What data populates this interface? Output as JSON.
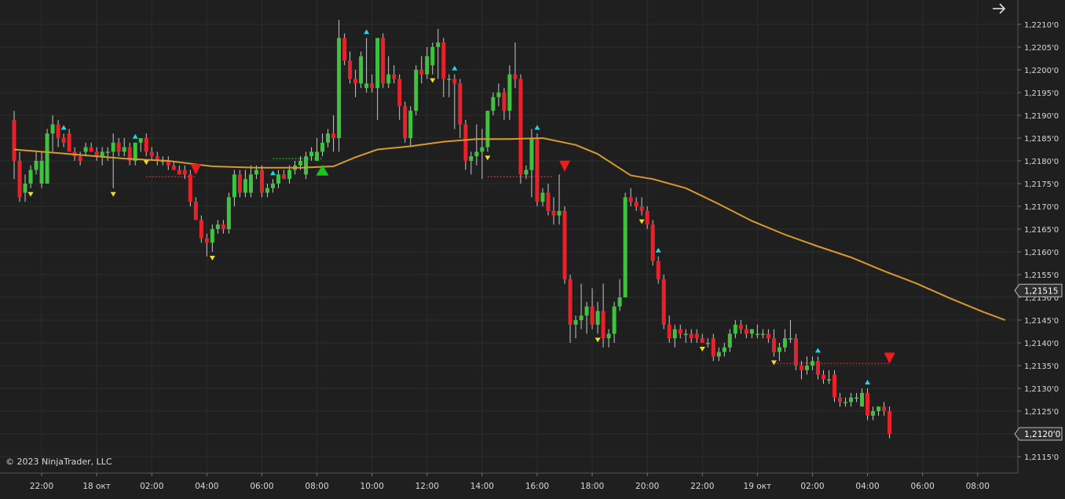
{
  "colors": {
    "background": "#1f1f1f",
    "grid": "#2d2d2d",
    "up_candle": "#3fc33f",
    "down_candle": "#e8222a",
    "wick": "#c8c8c8",
    "moving_average": "#d69a2d",
    "swing_high_marker": "#1fd6e6",
    "swing_low_marker": "#f2dc1e",
    "buy_signal": "#18c418",
    "sell_signal": "#f01c1c",
    "axis_text": "#d8d8d8",
    "price_label_bg": "#2e2e2e"
  },
  "icons": {
    "top_right": "arrow-right-icon"
  },
  "copyright": "© 2023 NinjaTrader, LLC",
  "chart_data": {
    "type": "candlestick",
    "title": "",
    "grid": true,
    "price_axis_side": "right",
    "ylim": [
      1.21125,
      1.2214
    ],
    "y_ticks": [
      {
        "value": 1.221,
        "label": "1,2210'0"
      },
      {
        "value": 1.2205,
        "label": "1,2205'0"
      },
      {
        "value": 1.22,
        "label": "1,2200'0"
      },
      {
        "value": 1.2195,
        "label": "1,2195'0"
      },
      {
        "value": 1.219,
        "label": "1,2190'0"
      },
      {
        "value": 1.2185,
        "label": "1,2185'0"
      },
      {
        "value": 1.218,
        "label": "1,2180'0"
      },
      {
        "value": 1.2175,
        "label": "1,2175'0"
      },
      {
        "value": 1.217,
        "label": "1,2170'0"
      },
      {
        "value": 1.2165,
        "label": "1,2165'0"
      },
      {
        "value": 1.216,
        "label": "1,2160'0"
      },
      {
        "value": 1.2155,
        "label": "1,2155'0"
      },
      {
        "value": 1.215,
        "label": "1,2150'0"
      },
      {
        "value": 1.2145,
        "label": "1,2145'0"
      },
      {
        "value": 1.214,
        "label": "1,2140'0"
      },
      {
        "value": 1.2135,
        "label": "1,2135'0"
      },
      {
        "value": 1.213,
        "label": "1,2130'0"
      },
      {
        "value": 1.2125,
        "label": "1,2125'0"
      },
      {
        "value": 1.212,
        "label": "1,2120'0"
      },
      {
        "value": 1.2115,
        "label": "1,2115'0"
      }
    ],
    "price_labels": [
      {
        "value": 1.21515,
        "label": "1,21515"
      },
      {
        "value": 1.212,
        "label": "1,2120'0"
      }
    ],
    "x_ticks": [
      {
        "bar": 5,
        "label": "22:00"
      },
      {
        "bar": 15,
        "label": "18 окт"
      },
      {
        "bar": 25,
        "label": "02:00"
      },
      {
        "bar": 35,
        "label": "04:00"
      },
      {
        "bar": 45,
        "label": "06:00"
      },
      {
        "bar": 55,
        "label": "08:00"
      },
      {
        "bar": 65,
        "label": "10:00"
      },
      {
        "bar": 75,
        "label": "12:00"
      },
      {
        "bar": 85,
        "label": "14:00"
      },
      {
        "bar": 95,
        "label": "16:00"
      },
      {
        "bar": 105,
        "label": "18:00"
      },
      {
        "bar": 115,
        "label": "20:00"
      },
      {
        "bar": 125,
        "label": "22:00"
      },
      {
        "bar": 135,
        "label": "19 окт"
      },
      {
        "bar": 145,
        "label": "02:00"
      },
      {
        "bar": 155,
        "label": "04:00"
      },
      {
        "bar": 165,
        "label": "06:00"
      },
      {
        "bar": 175,
        "label": "08:00"
      }
    ],
    "bars": [
      [
        1.2189,
        1.2191,
        1.2176,
        1.218
      ],
      [
        1.218,
        1.2182,
        1.2171,
        1.2172
      ],
      [
        1.2173,
        1.2177,
        1.2171,
        1.2175
      ],
      [
        1.2175,
        1.2179,
        1.2174,
        1.2178
      ],
      [
        1.2178,
        1.2182,
        1.2177,
        1.218
      ],
      [
        1.2175,
        1.2182,
        1.2174,
        1.218
      ],
      [
        1.2175,
        1.2187,
        1.2175,
        1.2186
      ],
      [
        1.2186,
        1.219,
        1.2182,
        1.2188
      ],
      [
        1.2188,
        1.2189,
        1.2183,
        1.2185
      ],
      [
        1.2185,
        1.2186,
        1.2183,
        1.2184
      ],
      [
        1.2186,
        1.2187,
        1.2182,
        1.2182
      ],
      [
        1.2182,
        1.2183,
        1.218,
        1.2181
      ],
      [
        1.2181,
        1.2182,
        1.2179,
        1.218
      ],
      [
        1.2182,
        1.2184,
        1.2181,
        1.2183
      ],
      [
        1.2183,
        1.2184,
        1.2182,
        1.2182
      ],
      [
        1.2182,
        1.2183,
        1.218,
        1.2181
      ],
      [
        1.2181,
        1.2183,
        1.2179,
        1.2182
      ],
      [
        1.2182,
        1.2183,
        1.218,
        1.2182
      ],
      [
        1.2182,
        1.2186,
        1.2174,
        1.2184
      ],
      [
        1.2184,
        1.2185,
        1.2181,
        1.2182
      ],
      [
        1.2182,
        1.2185,
        1.2181,
        1.2183
      ],
      [
        1.2183,
        1.2184,
        1.2179,
        1.218
      ],
      [
        1.218,
        1.2184,
        1.2179,
        1.2184
      ],
      [
        1.2184,
        1.2185,
        1.2182,
        1.2185
      ],
      [
        1.2185,
        1.2186,
        1.2181,
        1.2182
      ],
      [
        1.2182,
        1.2183,
        1.218,
        1.2181
      ],
      [
        1.2181,
        1.2182,
        1.2179,
        1.218
      ],
      [
        1.218,
        1.2181,
        1.2179,
        1.218
      ],
      [
        1.218,
        1.2181,
        1.2178,
        1.2179
      ],
      [
        1.2179,
        1.218,
        1.2178,
        1.2178
      ],
      [
        1.2178,
        1.2179,
        1.2177,
        1.2177
      ],
      [
        1.2178,
        1.2179,
        1.2176,
        1.2177
      ],
      [
        1.2177,
        1.2178,
        1.217,
        1.2171
      ],
      [
        1.2171,
        1.2172,
        1.2167,
        1.2167
      ],
      [
        1.2167,
        1.2168,
        1.2162,
        1.2163
      ],
      [
        1.2163,
        1.2164,
        1.2159,
        1.2162
      ],
      [
        1.2162,
        1.2166,
        1.216,
        1.2165
      ],
      [
        1.2165,
        1.2167,
        1.2164,
        1.2166
      ],
      [
        1.2166,
        1.2167,
        1.2164,
        1.2165
      ],
      [
        1.2165,
        1.2173,
        1.2164,
        1.2172
      ],
      [
        1.2172,
        1.2178,
        1.217,
        1.2177
      ],
      [
        1.2177,
        1.2178,
        1.2172,
        1.2173
      ],
      [
        1.2173,
        1.2178,
        1.2172,
        1.2176
      ],
      [
        1.2173,
        1.2179,
        1.2172,
        1.2177
      ],
      [
        1.2177,
        1.2179,
        1.2176,
        1.2178
      ],
      [
        1.2178,
        1.2179,
        1.2172,
        1.2173
      ],
      [
        1.2173,
        1.2175,
        1.2172,
        1.2174
      ],
      [
        1.2174,
        1.2176,
        1.2173,
        1.2175
      ],
      [
        1.2175,
        1.2178,
        1.2174,
        1.2177
      ],
      [
        1.2177,
        1.2178,
        1.2176,
        1.2176
      ],
      [
        1.2176,
        1.2179,
        1.2175,
        1.2178
      ],
      [
        1.2178,
        1.218,
        1.2177,
        1.2179
      ],
      [
        1.2179,
        1.2181,
        1.2178,
        1.218
      ],
      [
        1.2177,
        1.2182,
        1.2176,
        1.2181
      ],
      [
        1.2181,
        1.2183,
        1.218,
        1.2182
      ],
      [
        1.218,
        1.2185,
        1.218,
        1.2182
      ],
      [
        1.2182,
        1.2186,
        1.2181,
        1.2184
      ],
      [
        1.2184,
        1.2187,
        1.2183,
        1.2186
      ],
      [
        1.2186,
        1.219,
        1.2182,
        1.2185
      ],
      [
        1.2185,
        1.2211,
        1.2182,
        1.2207
      ],
      [
        1.2207,
        1.2208,
        1.2201,
        1.2202
      ],
      [
        1.2202,
        1.2204,
        1.2197,
        1.2198
      ],
      [
        1.2198,
        1.22,
        1.2194,
        1.2197
      ],
      [
        1.2197,
        1.2204,
        1.2196,
        1.2203
      ],
      [
        1.2196,
        1.2207,
        1.2195,
        1.2197
      ],
      [
        1.2197,
        1.2199,
        1.2195,
        1.2196
      ],
      [
        1.2196,
        1.2207,
        1.2189,
        1.2207
      ],
      [
        1.2207,
        1.2208,
        1.2196,
        1.2197
      ],
      [
        1.2197,
        1.2203,
        1.2196,
        1.2199
      ],
      [
        1.2199,
        1.2201,
        1.2197,
        1.2198
      ],
      [
        1.2198,
        1.2199,
        1.2189,
        1.2192
      ],
      [
        1.2192,
        1.2193,
        1.2184,
        1.2185
      ],
      [
        1.2185,
        1.2192,
        1.2183,
        1.2191
      ],
      [
        1.2191,
        1.2201,
        1.219,
        1.22
      ],
      [
        1.22,
        1.2203,
        1.2197,
        1.2199
      ],
      [
        1.2199,
        1.2205,
        1.2198,
        1.2203
      ],
      [
        1.2201,
        1.2206,
        1.2199,
        1.2205
      ],
      [
        1.2205,
        1.2209,
        1.2198,
        1.2206
      ],
      [
        1.2206,
        1.2207,
        1.2194,
        1.2198
      ],
      [
        1.2198,
        1.2199,
        1.2194,
        1.2198
      ],
      [
        1.2198,
        1.2199,
        1.2187,
        1.2197
      ],
      [
        1.2197,
        1.2198,
        1.2185,
        1.2188
      ],
      [
        1.2188,
        1.2189,
        1.2178,
        1.218
      ],
      [
        1.218,
        1.2182,
        1.2177,
        1.2181
      ],
      [
        1.2181,
        1.2188,
        1.2179,
        1.2182
      ],
      [
        1.2182,
        1.2187,
        1.2176,
        1.2183
      ],
      [
        1.2183,
        1.2191,
        1.2182,
        1.2191
      ],
      [
        1.2191,
        1.2195,
        1.219,
        1.2194
      ],
      [
        1.2194,
        1.2197,
        1.2192,
        1.2195
      ],
      [
        1.2195,
        1.2196,
        1.2189,
        1.2191
      ],
      [
        1.2191,
        1.2201,
        1.2189,
        1.2199
      ],
      [
        1.2199,
        1.2206,
        1.2196,
        1.2198
      ],
      [
        1.2198,
        1.2199,
        1.2175,
        1.2177
      ],
      [
        1.2177,
        1.2179,
        1.2176,
        1.2178
      ],
      [
        1.2178,
        1.2187,
        1.2172,
        1.2185
      ],
      [
        1.2185,
        1.2186,
        1.217,
        1.2171
      ],
      [
        1.2171,
        1.2174,
        1.217,
        1.2173
      ],
      [
        1.2173,
        1.2175,
        1.2168,
        1.2169
      ],
      [
        1.2169,
        1.2172,
        1.2166,
        1.2168
      ],
      [
        1.2168,
        1.2177,
        1.2166,
        1.2169
      ],
      [
        1.2169,
        1.217,
        1.2153,
        1.2154
      ],
      [
        1.2154,
        1.2155,
        1.214,
        1.2144
      ],
      [
        1.2144,
        1.2146,
        1.2141,
        1.2145
      ],
      [
        1.2145,
        1.2153,
        1.2143,
        1.2146
      ],
      [
        1.2146,
        1.2149,
        1.2142,
        1.2148
      ],
      [
        1.2148,
        1.2152,
        1.2143,
        1.2144
      ],
      [
        1.2144,
        1.2149,
        1.2142,
        1.2147
      ],
      [
        1.2147,
        1.2153,
        1.2139,
        1.2141
      ],
      [
        1.2141,
        1.2143,
        1.2139,
        1.2142
      ],
      [
        1.2142,
        1.2149,
        1.214,
        1.2148
      ],
      [
        1.2148,
        1.2154,
        1.2147,
        1.215
      ],
      [
        1.215,
        1.2173,
        1.215,
        1.2172
      ],
      [
        1.2172,
        1.2174,
        1.217,
        1.2171
      ],
      [
        1.2171,
        1.2172,
        1.2169,
        1.217
      ],
      [
        1.217,
        1.2172,
        1.2168,
        1.2169
      ],
      [
        1.2169,
        1.217,
        1.2165,
        1.2166
      ],
      [
        1.2166,
        1.2167,
        1.2157,
        1.2158
      ],
      [
        1.2158,
        1.2159,
        1.2153,
        1.2154
      ],
      [
        1.2154,
        1.2155,
        1.2143,
        1.2144
      ],
      [
        1.2144,
        1.2146,
        1.214,
        1.2141
      ],
      [
        1.2141,
        1.2144,
        1.2139,
        1.2143
      ],
      [
        1.2143,
        1.2144,
        1.2141,
        1.2142
      ],
      [
        1.2142,
        1.2143,
        1.214,
        1.2142
      ],
      [
        1.2142,
        1.2143,
        1.214,
        1.2141
      ],
      [
        1.2142,
        1.2143,
        1.214,
        1.2141
      ],
      [
        1.2141,
        1.2142,
        1.214,
        1.214
      ],
      [
        1.214,
        1.2141,
        1.2139,
        1.214
      ],
      [
        1.2141,
        1.2142,
        1.2136,
        1.2137
      ],
      [
        1.2137,
        1.2139,
        1.2136,
        1.2138
      ],
      [
        1.2138,
        1.214,
        1.2137,
        1.2139
      ],
      [
        1.2139,
        1.2143,
        1.2138,
        1.2142
      ],
      [
        1.2142,
        1.2145,
        1.2141,
        1.2144
      ],
      [
        1.2144,
        1.2145,
        1.2142,
        1.2143
      ],
      [
        1.2143,
        1.2144,
        1.2141,
        1.2142
      ],
      [
        1.2142,
        1.2143,
        1.2141,
        1.2143
      ],
      [
        1.2142,
        1.2144,
        1.2141,
        1.2142
      ],
      [
        1.2142,
        1.2143,
        1.2141,
        1.2142
      ],
      [
        1.2142,
        1.2143,
        1.214,
        1.2141
      ],
      [
        1.2141,
        1.2143,
        1.2137,
        1.2138
      ],
      [
        1.2138,
        1.214,
        1.2136,
        1.2139
      ],
      [
        1.2139,
        1.2143,
        1.2138,
        1.2141
      ],
      [
        1.2141,
        1.2145,
        1.214,
        1.2141
      ],
      [
        1.2141,
        1.2142,
        1.2134,
        1.2135
      ],
      [
        1.2135,
        1.2136,
        1.2132,
        1.2134
      ],
      [
        1.2134,
        1.2137,
        1.2133,
        1.2135
      ],
      [
        1.2135,
        1.2137,
        1.2134,
        1.2136
      ],
      [
        1.2136,
        1.2137,
        1.2132,
        1.2133
      ],
      [
        1.2133,
        1.2134,
        1.2131,
        1.2132
      ],
      [
        1.2132,
        1.2134,
        1.2131,
        1.2132
      ],
      [
        1.2133,
        1.2134,
        1.2127,
        1.2128
      ],
      [
        1.2128,
        1.2129,
        1.2126,
        1.2127
      ],
      [
        1.2127,
        1.2128,
        1.2126,
        1.2127
      ],
      [
        1.2127,
        1.2129,
        1.2126,
        1.2128
      ],
      [
        1.2128,
        1.2129,
        1.2127,
        1.2128
      ],
      [
        1.2126,
        1.213,
        1.2126,
        1.2129
      ],
      [
        1.2129,
        1.213,
        1.2123,
        1.2124
      ],
      [
        1.2124,
        1.2126,
        1.2123,
        1.2125
      ],
      [
        1.2125,
        1.2126,
        1.2124,
        1.2126
      ],
      [
        1.2126,
        1.2127,
        1.2124,
        1.2125
      ],
      [
        1.2125,
        1.2126,
        1.2119,
        1.212
      ]
    ],
    "moving_average": [
      [
        0,
        1.21825
      ],
      [
        10,
        1.21815
      ],
      [
        20,
        1.21805
      ],
      [
        28,
        1.218
      ],
      [
        36,
        1.21788
      ],
      [
        44,
        1.21785
      ],
      [
        52,
        1.21785
      ],
      [
        58,
        1.21788
      ],
      [
        62,
        1.21808
      ],
      [
        66,
        1.21825
      ],
      [
        72,
        1.21832
      ],
      [
        78,
        1.21842
      ],
      [
        84,
        1.21848
      ],
      [
        90,
        1.21848
      ],
      [
        96,
        1.2185
      ],
      [
        102,
        1.21835
      ],
      [
        106,
        1.21815
      ],
      [
        112,
        1.21768
      ],
      [
        116,
        1.2176
      ],
      [
        122,
        1.2174
      ],
      [
        128,
        1.21705
      ],
      [
        134,
        1.21668
      ],
      [
        140,
        1.21638
      ],
      [
        146,
        1.21612
      ],
      [
        152,
        1.21588
      ],
      [
        158,
        1.21558
      ],
      [
        164,
        1.2153
      ],
      [
        170,
        1.21498
      ],
      [
        176,
        1.21468
      ],
      [
        180,
        1.2145
      ]
    ],
    "swing_highs": [
      9,
      22,
      47,
      64,
      80,
      95,
      117,
      146,
      155
    ],
    "swing_lows": [
      3,
      18,
      24,
      36,
      76,
      86,
      106,
      114,
      125,
      138
    ],
    "buy_signals": [
      {
        "bar": 56,
        "value": 1.21778
      }
    ],
    "sell_signals": [
      {
        "bar": 33,
        "value": 1.21783
      },
      {
        "bar": 100,
        "value": 1.2179
      },
      {
        "bar": 159,
        "value": 1.21368
      }
    ],
    "support_lines": [
      {
        "from_bar": 24,
        "to_bar": 33,
        "value": 1.21765,
        "color": "red"
      },
      {
        "from_bar": 86,
        "to_bar": 98,
        "value": 1.21765,
        "color": "red"
      },
      {
        "from_bar": 138,
        "to_bar": 159,
        "value": 1.21355,
        "color": "red"
      },
      {
        "from_bar": 47,
        "to_bar": 56,
        "value": 1.21805,
        "color": "green"
      }
    ]
  }
}
